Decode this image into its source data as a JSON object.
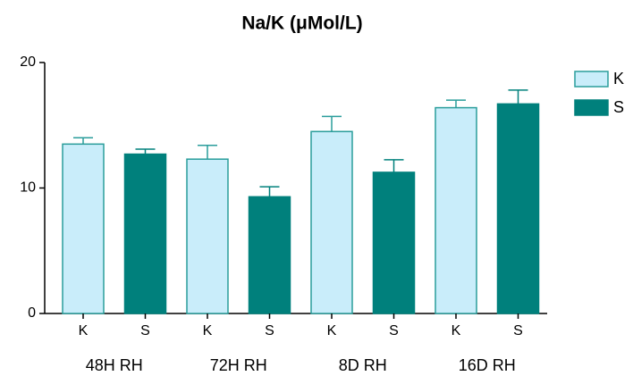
{
  "chart_data": {
    "type": "bar",
    "title": "Na/K (μMol/L)",
    "groups": [
      "48H RH",
      "72H RH",
      "8D RH",
      "16D RH"
    ],
    "series": [
      {
        "name": "K",
        "color": "#c9edfa",
        "edge": "#2a9d9b",
        "values": [
          13.5,
          12.3,
          14.5,
          16.4
        ],
        "errors": [
          0.5,
          1.1,
          1.2,
          0.6
        ]
      },
      {
        "name": "S",
        "color": "#00807c",
        "edge": "#00807c",
        "values": [
          12.7,
          9.3,
          11.25,
          16.7
        ],
        "errors": [
          0.4,
          0.8,
          1.0,
          1.1
        ]
      }
    ],
    "ylim": [
      0,
      20
    ],
    "yticks": [
      0,
      10,
      20
    ],
    "legend": "right"
  }
}
